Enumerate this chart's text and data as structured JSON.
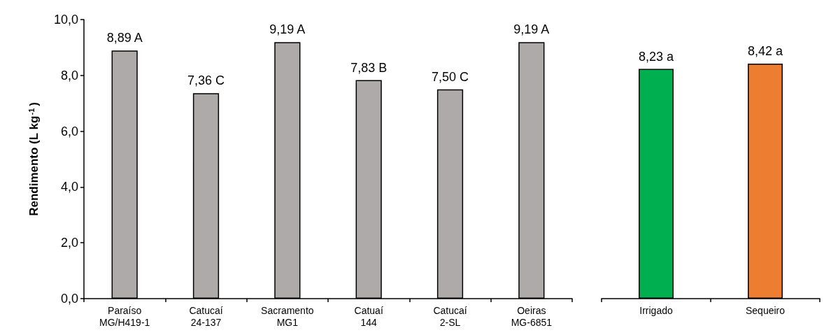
{
  "chart_data": [
    {
      "type": "bar",
      "ylabel": "Rendimento (L kg$^{-1}$)",
      "categories": [
        "Paraíso\nMG/H419-1",
        "Catucaí\n24-137",
        "Sacramento\nMG1",
        "Catuaí\n144",
        "Catucaí\n2-SL",
        "Oeiras\nMG-6851"
      ],
      "values": [
        8.89,
        7.36,
        9.19,
        7.83,
        7.5,
        9.19
      ],
      "value_labels": [
        "8,89 A",
        "7,36 C",
        "9,19 A",
        "7,83 B",
        "7,50 C",
        "9,19 A"
      ],
      "colors": [
        "#aeaaaa",
        "#aeaaaa",
        "#aeaaaa",
        "#aeaaaa",
        "#aeaaaa",
        "#aeaaaa"
      ],
      "ylim": [
        0,
        10
      ],
      "yticks": [
        {
          "value": 0,
          "label": "0,0"
        },
        {
          "value": 2,
          "label": "2,0"
        },
        {
          "value": 4,
          "label": "4,0"
        },
        {
          "value": 6,
          "label": "6,0"
        },
        {
          "value": 8,
          "label": "8,0"
        },
        {
          "value": 10,
          "label": "10,0"
        }
      ],
      "grid": false
    },
    {
      "type": "bar",
      "categories": [
        "Irrigado",
        "Sequeiro"
      ],
      "values": [
        8.23,
        8.42
      ],
      "value_labels": [
        "8,23 a",
        "8,42 a"
      ],
      "colors": [
        "#00b050",
        "#ed7d31"
      ],
      "ylim": [
        0,
        10
      ],
      "tick_labels": "x",
      "grid": false
    }
  ]
}
